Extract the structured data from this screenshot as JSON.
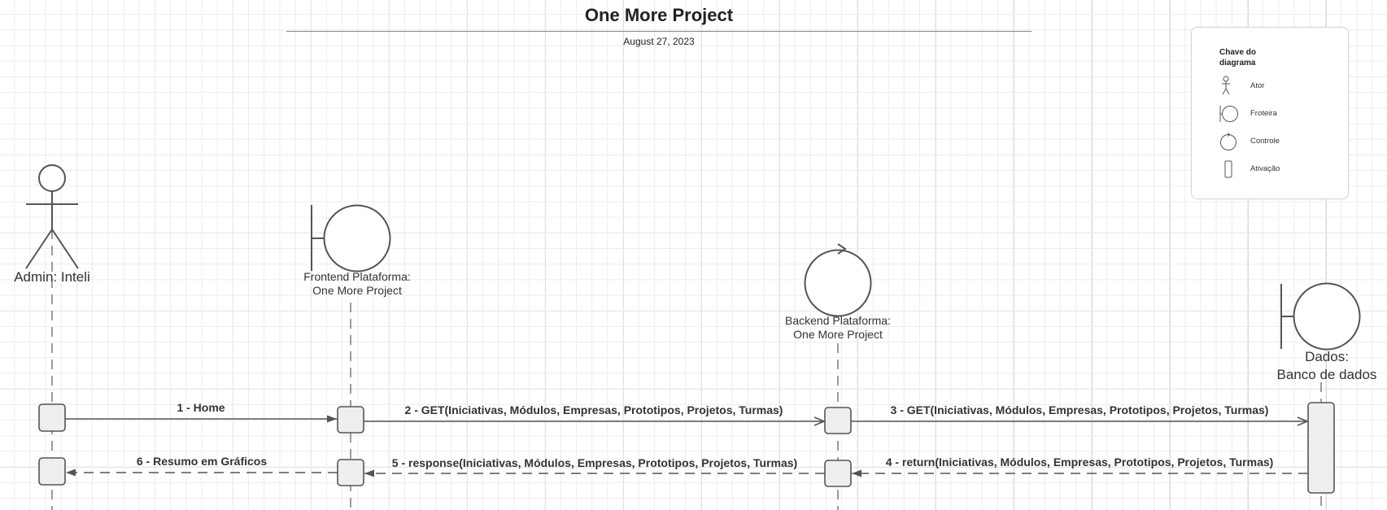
{
  "header": {
    "title": "One More Project",
    "date": "August 27, 2023"
  },
  "legend": {
    "title": "Chave do diagrama",
    "items": [
      {
        "icon": "actor-icon",
        "label": "Ator"
      },
      {
        "icon": "boundary-icon",
        "label": "Froteira"
      },
      {
        "icon": "control-icon",
        "label": "Controle"
      },
      {
        "icon": "activation-icon",
        "label": "Ativação"
      }
    ]
  },
  "participants": {
    "admin": {
      "line1": "Admin: Inteli"
    },
    "frontend": {
      "line1": "Frontend Plataforma:",
      "line2": "One More Project"
    },
    "backend": {
      "line1": "Backend Plataforma:",
      "line2": "One More Project"
    },
    "dados": {
      "line1": "Dados:",
      "line2": "Banco de dados"
    }
  },
  "messages": {
    "m1": "1 - Home",
    "m2": "2 - GET(Iniciativas, Módulos, Empresas, Prototipos, Projetos, Turmas)",
    "m3": "3 - GET(Iniciativas, Módulos, Empresas, Prototipos, Projetos, Turmas)",
    "m4": "4 - return(Iniciativas, Módulos, Empresas, Prototipos, Projetos, Turmas)",
    "m5": "5 - response(Iniciativas, Módulos, Empresas, Prototipos, Projetos, Turmas)",
    "m6": "6 - Resumo em Gráficos"
  },
  "colors": {
    "stroke": "#555555",
    "box_fill": "#eeeeee",
    "text": "#333333"
  }
}
